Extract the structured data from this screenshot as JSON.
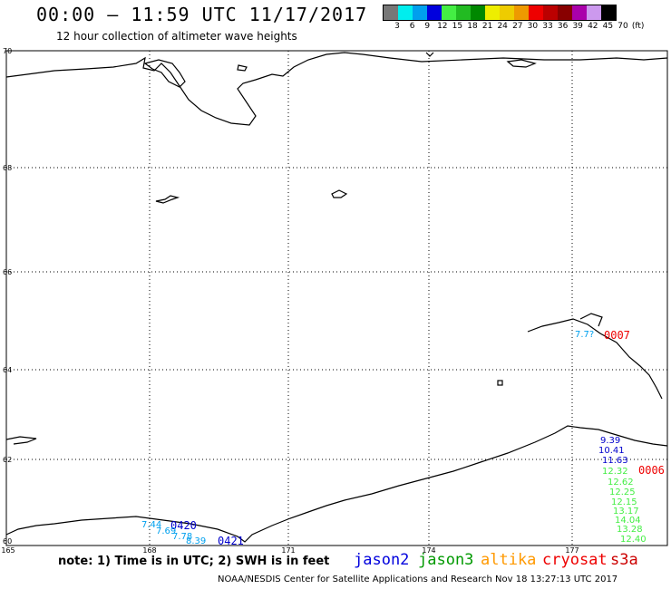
{
  "header": {
    "title": "00:00 – 11:59 UTC 11/17/2017",
    "subtitle": "12 hour collection of altimeter wave heights"
  },
  "color_scale": {
    "colors": [
      "#777777",
      "#00eeee",
      "#00a0ee",
      "#0000dd",
      "#44ee44",
      "#22bb22",
      "#008800",
      "#eeee00",
      "#eecc00",
      "#ee9900",
      "#ee0000",
      "#bb0000",
      "#880000",
      "#aa00aa",
      "#cc99ee",
      "#000000"
    ],
    "labels": [
      "3",
      "6",
      "9",
      "12",
      "15",
      "18",
      "21",
      "24",
      "27",
      "30",
      "33",
      "36",
      "39",
      "42",
      "45",
      "70",
      "(ft)"
    ]
  },
  "map": {
    "lat_labels": [
      "70",
      "68",
      "66",
      "64",
      "62",
      "60"
    ],
    "lon_labels": [
      "165",
      "168",
      "171",
      "174",
      "177"
    ],
    "track_labels": [
      {
        "text": "0007",
        "color": "#ee0000"
      },
      {
        "text": "0006",
        "color": "#ee0000"
      },
      {
        "text": "0420",
        "color": "#0000cc"
      },
      {
        "text": "0421",
        "color": "#0000cc"
      }
    ],
    "swh_values": [
      {
        "text": "7.7?",
        "color": "#00a0ee"
      },
      {
        "text": "9.39",
        "color": "#0000cc"
      },
      {
        "text": "10.41",
        "color": "#0000cc"
      },
      {
        "text": "11.63",
        "color": "#0000cc"
      },
      {
        "text": "12.32",
        "color": "#44ee44"
      },
      {
        "text": "12.62",
        "color": "#44ee44"
      },
      {
        "text": "12.25",
        "color": "#44ee44"
      },
      {
        "text": "12.15",
        "color": "#44ee44"
      },
      {
        "text": "13.17",
        "color": "#44ee44"
      },
      {
        "text": "14.04",
        "color": "#44ee44"
      },
      {
        "text": "13.28",
        "color": "#44ee44"
      },
      {
        "text": "12.40",
        "color": "#44ee44"
      },
      {
        "text": "7.44",
        "color": "#00a0ee"
      },
      {
        "text": "7.69",
        "color": "#00a0ee"
      },
      {
        "text": "7.78",
        "color": "#00a0ee"
      },
      {
        "text": "8.39",
        "color": "#00a0ee"
      }
    ]
  },
  "footer": {
    "note": "note: 1) Time is in UTC; 2) SWH is in feet",
    "legend": [
      {
        "label": "jason2",
        "color": "#0000dd"
      },
      {
        "label": "jason3",
        "color": "#009900"
      },
      {
        "label": "altika",
        "color": "#ff9900"
      },
      {
        "label": "cryosat",
        "color": "#ee0000"
      },
      {
        "label": "s3a",
        "color": "#cc0000"
      }
    ],
    "credit": "NOAA/NESDIS Center for Satellite Applications and Research    Nov 18 13:27:13 UTC 2017"
  }
}
